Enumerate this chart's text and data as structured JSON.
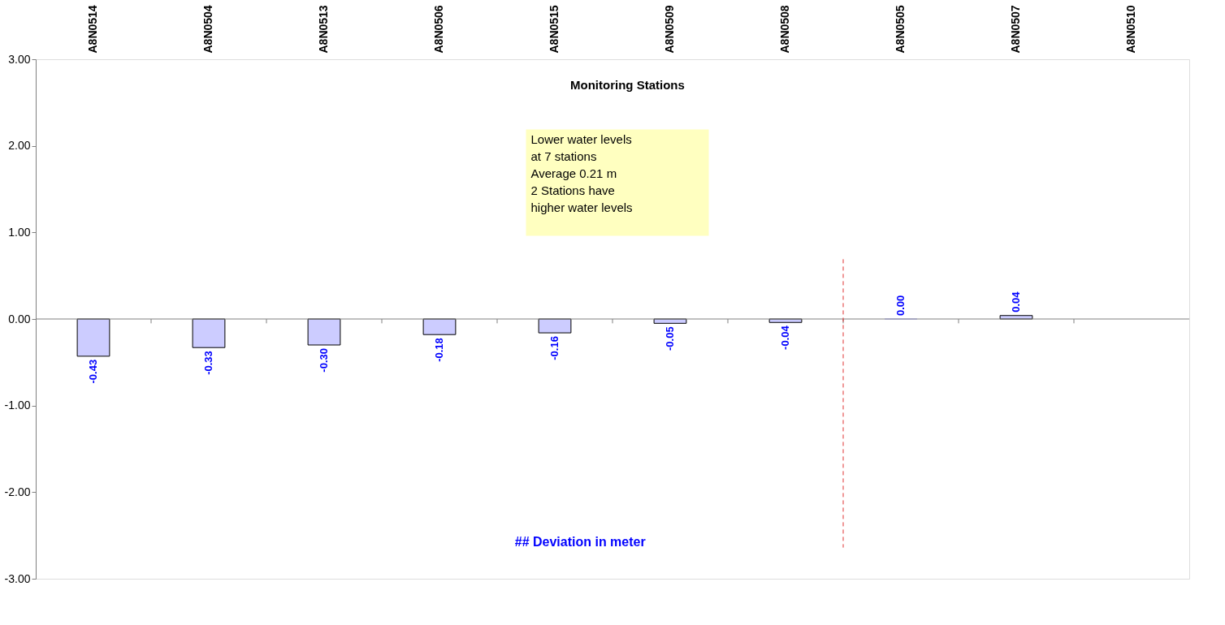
{
  "chart_data": {
    "type": "bar",
    "title": "Monitoring Stations",
    "categories": [
      "A8N0514",
      "A8N0504",
      "A8N0513",
      "A8N0506",
      "A8N0515",
      "A8N0509",
      "A8N0508",
      "A8N0505",
      "A8N0507",
      "A8N0510"
    ],
    "values": [
      -0.43,
      -0.33,
      -0.3,
      -0.18,
      -0.16,
      -0.05,
      -0.04,
      0.0,
      0.04,
      null
    ],
    "value_labels": [
      "-0.43",
      "-0.33",
      "-0.30",
      "-0.18",
      "-0.16",
      "-0.05",
      "-0.04",
      "0.00",
      "0.04",
      null
    ],
    "color": "#ccccff",
    "ylim": [
      -3,
      3
    ],
    "yticks": [
      {
        "value": -3,
        "label": "-3.00"
      },
      {
        "value": -2,
        "label": "-2.00"
      },
      {
        "value": -1,
        "label": "-1.00"
      },
      {
        "value": 0,
        "label": "0.00"
      },
      {
        "value": 1,
        "label": "1.00"
      },
      {
        "value": 2,
        "label": "2.00"
      },
      {
        "value": 3,
        "label": "3.00"
      }
    ],
    "ref_lines": [
      {
        "axis": "y",
        "value": 0,
        "color": "#808080",
        "line_style": "solid"
      }
    ],
    "annotations": [
      "Lower  water levels\nat 7  stations\nAverage 0.21 m\n2 Stations have\nhigher water levels",
      "## Deviation in meter"
    ],
    "grid": false
  }
}
